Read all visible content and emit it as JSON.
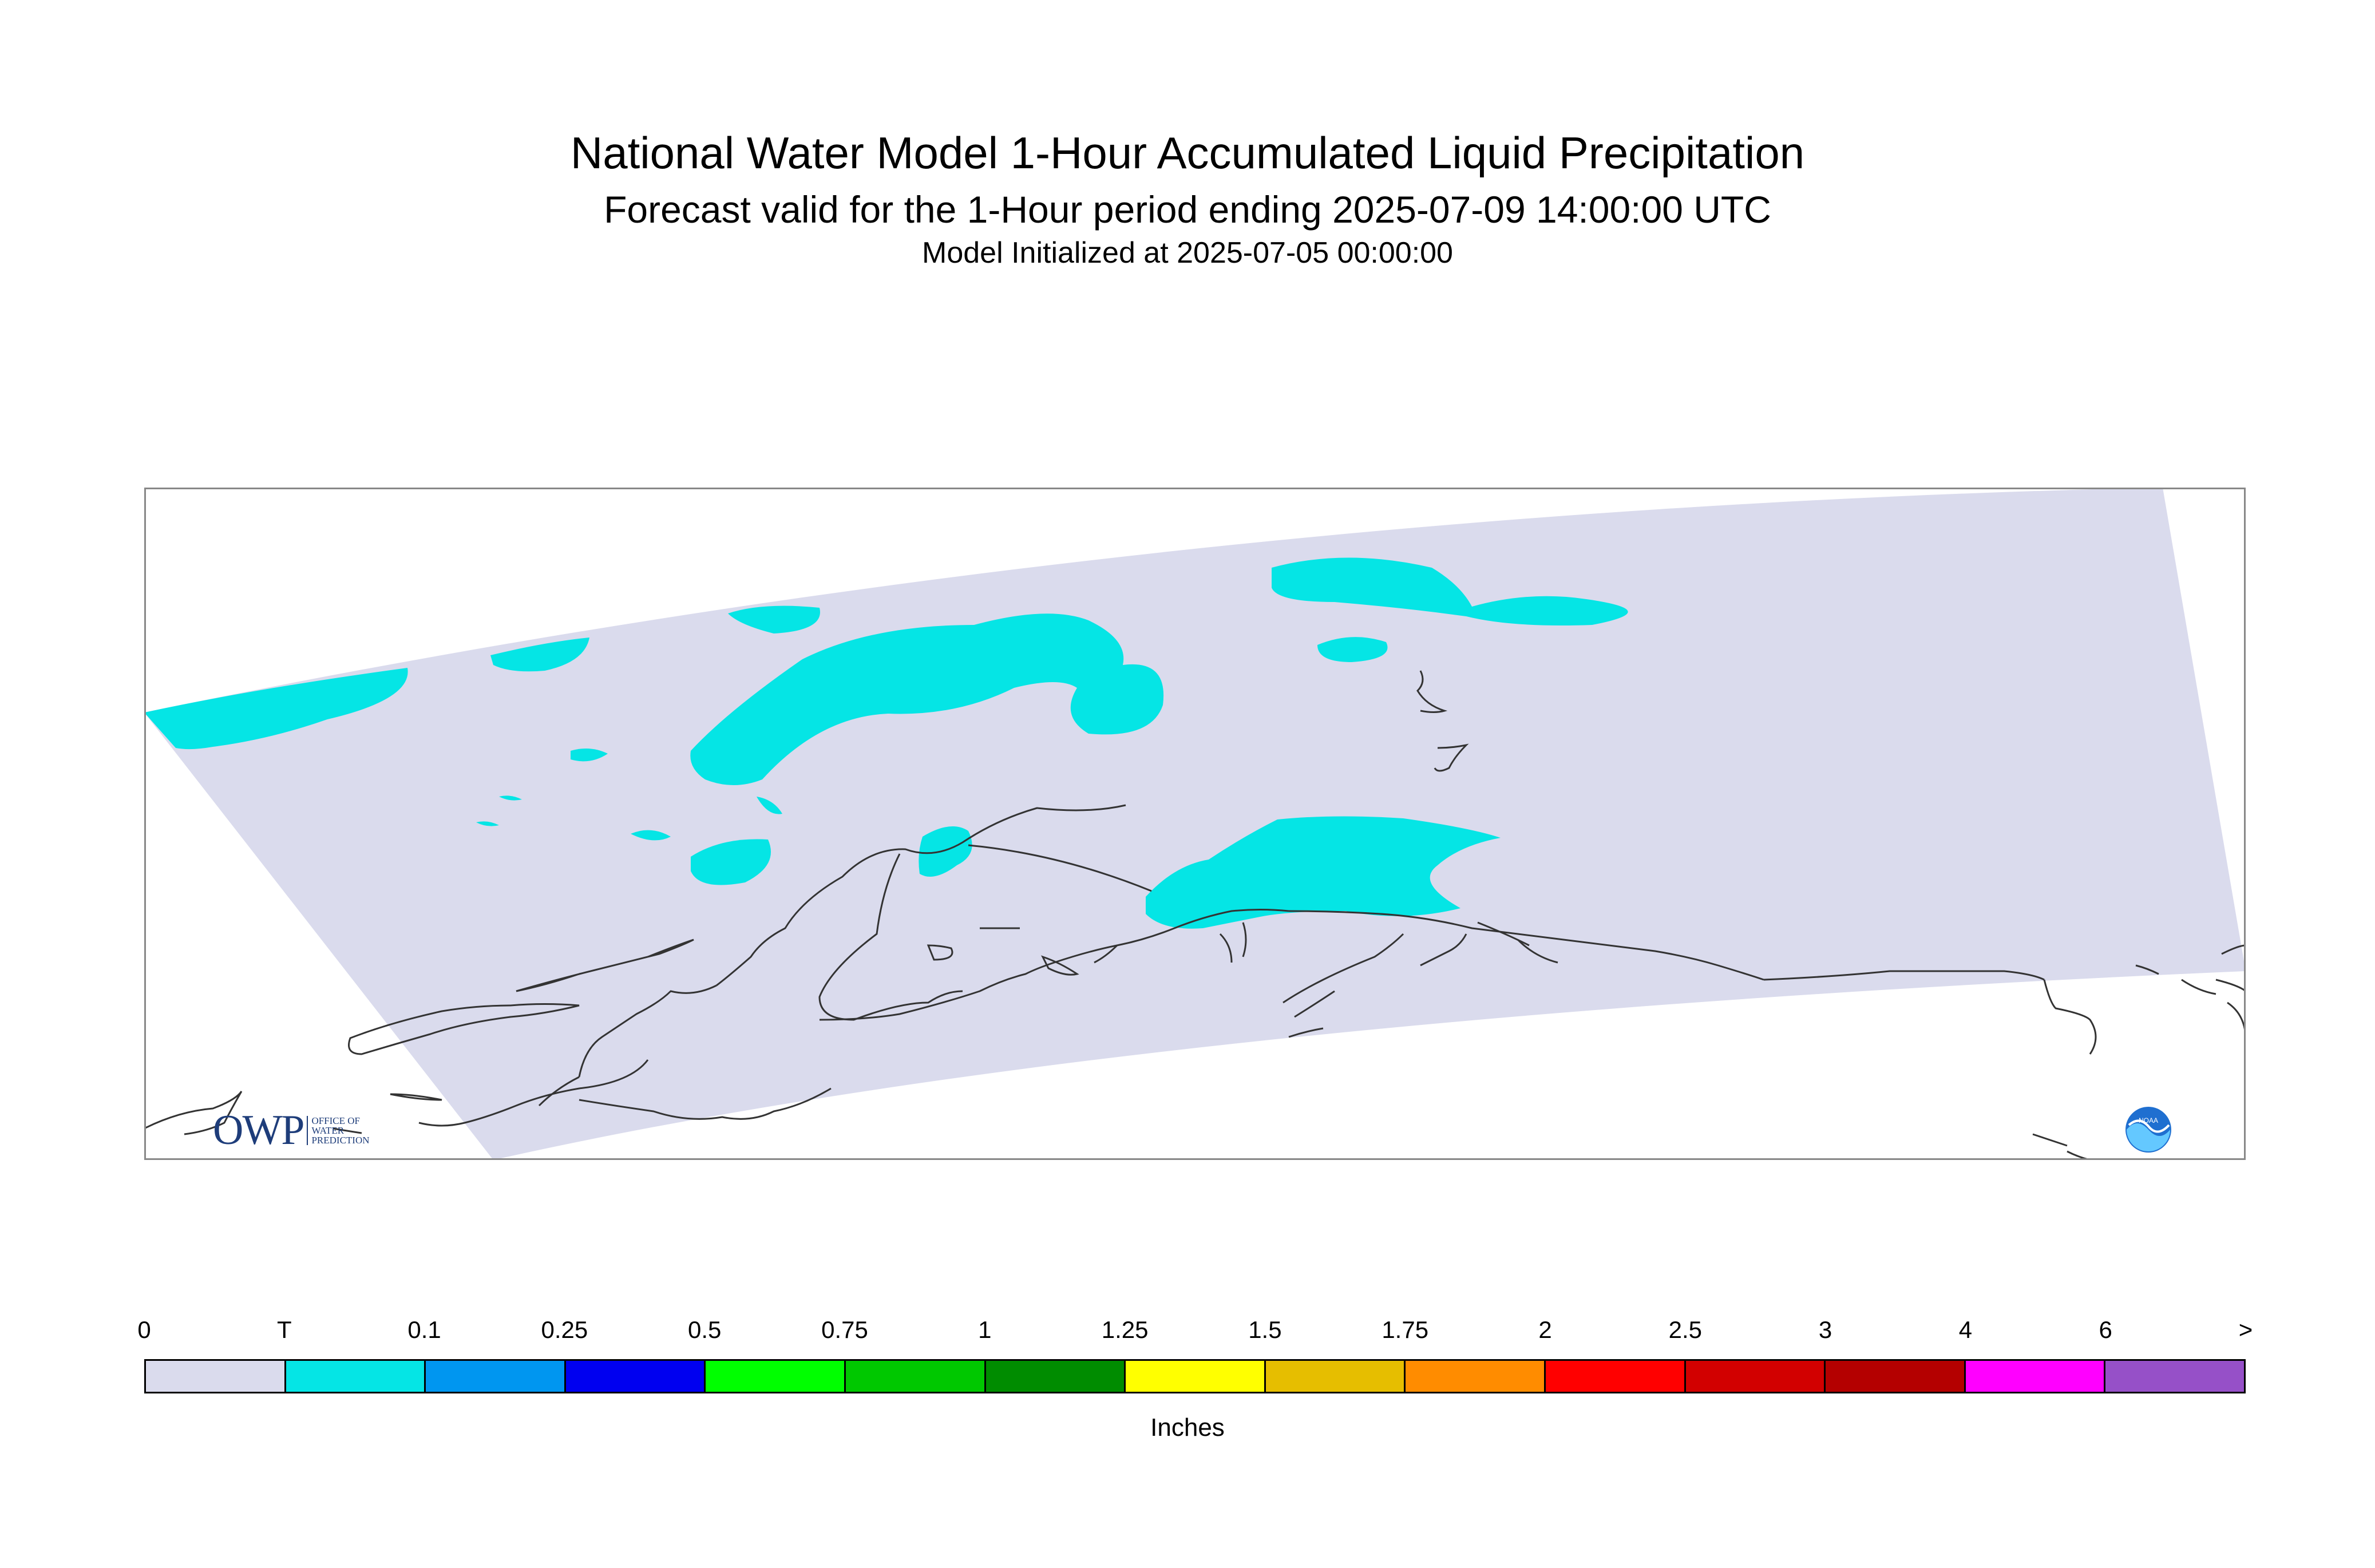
{
  "title": "National Water Model 1-Hour Accumulated Liquid Precipitation",
  "subtitle": "Forecast valid for the 1-Hour period ending 2025-07-09 14:00:00 UTC",
  "init": "Model Initialized at 2025-07-05 00:00:00",
  "colors": {
    "domain": "#dadbed",
    "cyan": "#05e5e5",
    "coast": "#333333",
    "frame": "#888888"
  },
  "legend": {
    "ticks": [
      "0",
      "T",
      "0.1",
      "0.25",
      "0.5",
      "0.75",
      "1",
      "1.25",
      "1.5",
      "1.75",
      "2",
      "2.5",
      "3",
      "4",
      "6",
      ">"
    ],
    "colors": [
      "#dadbed",
      "#05e5e5",
      "#0096f0",
      "#0000f0",
      "#00ff00",
      "#00c800",
      "#008c00",
      "#ffff00",
      "#e6be00",
      "#ff8c00",
      "#ff0000",
      "#d20000",
      "#b40000",
      "#ff00ff",
      "#9650c8"
    ],
    "units": "Inches"
  },
  "logos": {
    "owp_word": "OWP",
    "owp_sub": "OFFICE OF\nWATER\nPREDICTION",
    "noaa": "NOAA"
  }
}
